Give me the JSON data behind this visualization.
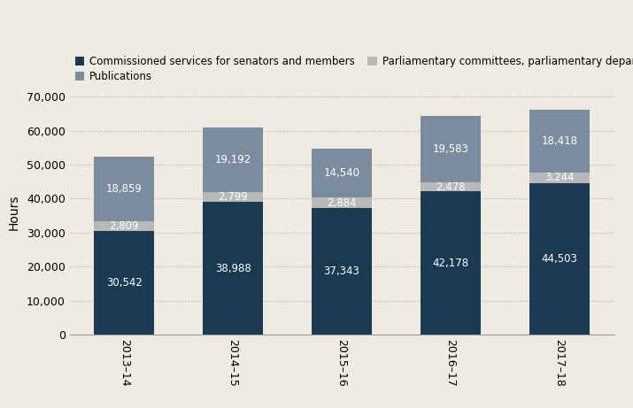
{
  "years": [
    "2013–14",
    "2014–15",
    "2015–16",
    "2016–17",
    "2017–18"
  ],
  "senators_members": [
    30542,
    38988,
    37343,
    42178,
    44503
  ],
  "committees": [
    2809,
    2799,
    2884,
    2478,
    3244
  ],
  "publications": [
    18859,
    19192,
    14540,
    19583,
    18418
  ],
  "color_senators": "#1a3a52",
  "color_committees": "#b8b8b8",
  "color_publications": "#7a8c9e",
  "background_color": "#f0ebe0",
  "ylabel": "Hours",
  "ylim": [
    0,
    72000
  ],
  "yticks": [
    0,
    10000,
    20000,
    30000,
    40000,
    50000,
    60000,
    70000
  ],
  "legend_senators": "Commissioned services for senators and members",
  "legend_publications": "Publications",
  "legend_committees": "Parliamentary committees, parliamentary departments and reciprocal arrangements",
  "bar_width": 0.55,
  "label_fontsize": 8.5
}
